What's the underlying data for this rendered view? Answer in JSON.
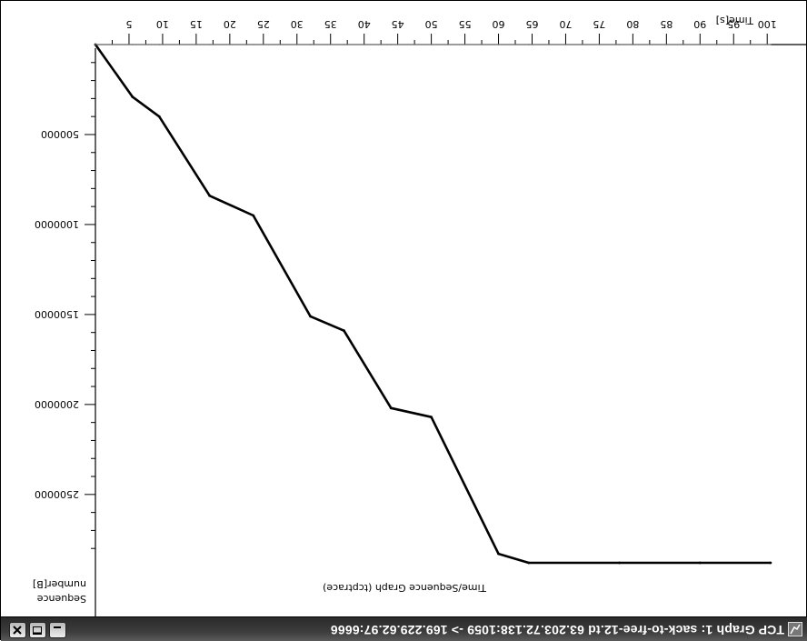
{
  "window": {
    "title": "TCP Graph 1: sack-to-free-12.td 63.203.72.138:1059 -> 169.229.62.97:6666",
    "icon": "tcp-graph-app-icon",
    "buttons": {
      "minimize_icon": "minimize-icon",
      "maximize_icon": "maximize-icon",
      "close_icon": "close-icon"
    }
  },
  "colors": {
    "title_bar": "#3a3a3a",
    "data": "#000000",
    "window_lines": "#777777",
    "axis": "#000000"
  },
  "chart_data": {
    "type": "line",
    "title": "Time/Sequence Graph (tcptrace)",
    "xlabel": "Time[s]",
    "ylabel_lines": [
      "Sequence",
      "number[B]"
    ],
    "xlim": [
      0,
      102
    ],
    "ylim": [
      0,
      2900000
    ],
    "xticks": [
      5,
      10,
      15,
      20,
      25,
      30,
      35,
      40,
      45,
      50,
      55,
      60,
      65,
      70,
      75,
      80,
      85,
      90,
      95,
      100
    ],
    "yticks": [
      500000,
      1000000,
      1500000,
      2000000,
      2500000
    ],
    "ytick_labels": [
      "500000",
      "1000000",
      "1500000",
      "2000000",
      "2500000"
    ],
    "orientation": "rotated 180 degrees",
    "grid": false,
    "series": [
      {
        "role": "data",
        "x": [
          0,
          5.5,
          9.5,
          17,
          23.5,
          32,
          37,
          44,
          50,
          60,
          64.5,
          78,
          90,
          100.5
        ],
        "y": [
          0,
          290000,
          400000,
          840000,
          950000,
          1510000,
          1590000,
          2020000,
          2070000,
          2830000,
          2880000,
          2880000,
          2880000,
          2880000
        ]
      },
      {
        "role": "data",
        "x": [
          0,
          5.5,
          9.5,
          17,
          23.5,
          32,
          37,
          44,
          50,
          60,
          64.5,
          78,
          90,
          100.5
        ],
        "y": [
          0,
          0,
          0,
          0,
          0,
          0,
          0,
          0,
          0,
          0,
          0,
          0,
          0,
          0
        ]
      }
    ]
  }
}
